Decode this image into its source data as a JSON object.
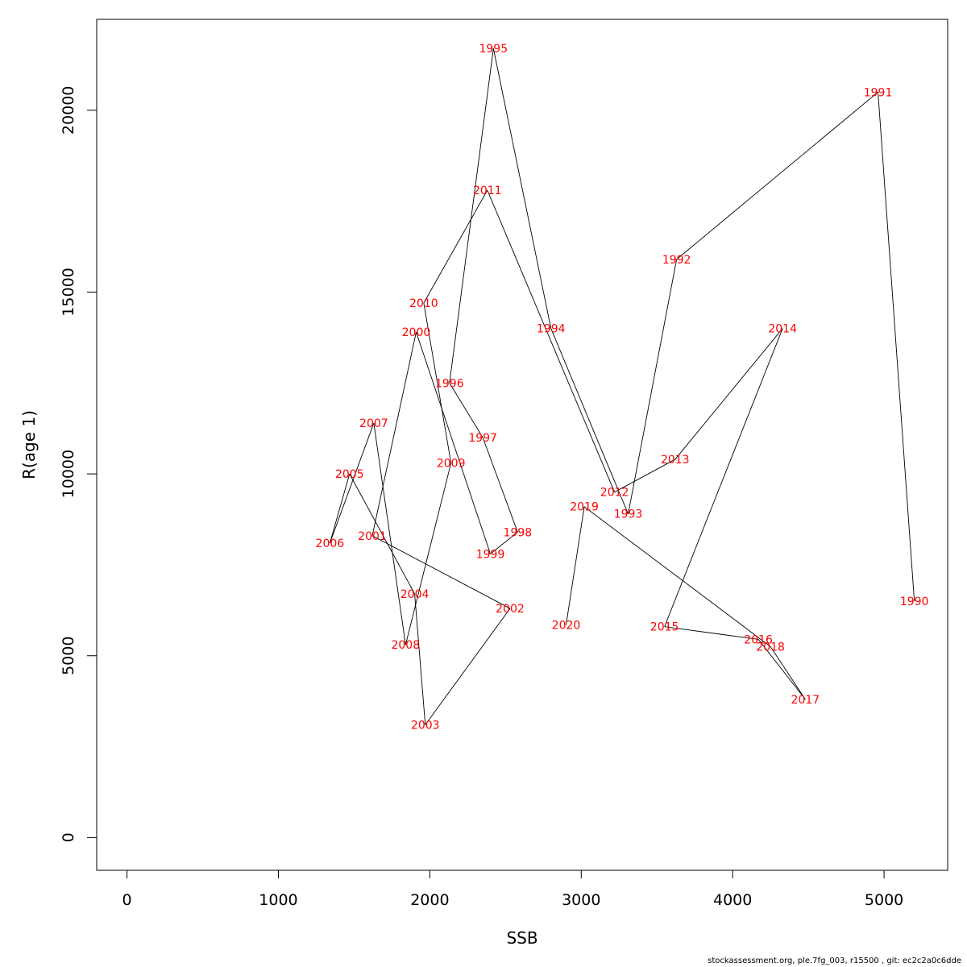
{
  "footer": "stockassessment.org, ple.7fg_003, r15500 , git: ec2c2a0c6dde",
  "chart_data": {
    "type": "scatter",
    "connected": true,
    "xlabel": "SSB",
    "ylabel": "R(age 1)",
    "xlim": [
      -200,
      5420
    ],
    "ylim": [
      -900,
      22500
    ],
    "x_ticks": [
      0,
      1000,
      2000,
      3000,
      4000,
      5000
    ],
    "y_ticks": [
      0,
      5000,
      10000,
      15000,
      20000
    ],
    "grid": false,
    "line_color": "#000000",
    "label_color": "#ff0000",
    "points": [
      {
        "label": "1990",
        "x": 5200,
        "y": 6500
      },
      {
        "label": "1991",
        "x": 4960,
        "y": 20500
      },
      {
        "label": "1992",
        "x": 3630,
        "y": 15900
      },
      {
        "label": "1993",
        "x": 3310,
        "y": 8900
      },
      {
        "label": "1994",
        "x": 2800,
        "y": 14000
      },
      {
        "label": "1995",
        "x": 2420,
        "y": 21700
      },
      {
        "label": "1996",
        "x": 2130,
        "y": 12500
      },
      {
        "label": "1997",
        "x": 2350,
        "y": 11000
      },
      {
        "label": "1998",
        "x": 2580,
        "y": 8400
      },
      {
        "label": "1999",
        "x": 2400,
        "y": 7800
      },
      {
        "label": "2000",
        "x": 1910,
        "y": 13900
      },
      {
        "label": "2001",
        "x": 1620,
        "y": 8300
      },
      {
        "label": "2002",
        "x": 2530,
        "y": 6300
      },
      {
        "label": "2003",
        "x": 1970,
        "y": 3100
      },
      {
        "label": "2004",
        "x": 1900,
        "y": 6700
      },
      {
        "label": "2005",
        "x": 1470,
        "y": 10000
      },
      {
        "label": "2006",
        "x": 1340,
        "y": 8100
      },
      {
        "label": "2007",
        "x": 1630,
        "y": 11400
      },
      {
        "label": "2008",
        "x": 1840,
        "y": 5300
      },
      {
        "label": "2009",
        "x": 2140,
        "y": 10300
      },
      {
        "label": "2010",
        "x": 1960,
        "y": 14700
      },
      {
        "label": "2011",
        "x": 2380,
        "y": 17800
      },
      {
        "label": "2012",
        "x": 3220,
        "y": 9500
      },
      {
        "label": "2013",
        "x": 3620,
        "y": 10400
      },
      {
        "label": "2014",
        "x": 4330,
        "y": 14000
      },
      {
        "label": "2015",
        "x": 3550,
        "y": 5800
      },
      {
        "label": "2016",
        "x": 4170,
        "y": 5450
      },
      {
        "label": "2017",
        "x": 4480,
        "y": 3800
      },
      {
        "label": "2018",
        "x": 4250,
        "y": 5250
      },
      {
        "label": "2019",
        "x": 3020,
        "y": 9100
      },
      {
        "label": "2020",
        "x": 2900,
        "y": 5850
      }
    ]
  }
}
